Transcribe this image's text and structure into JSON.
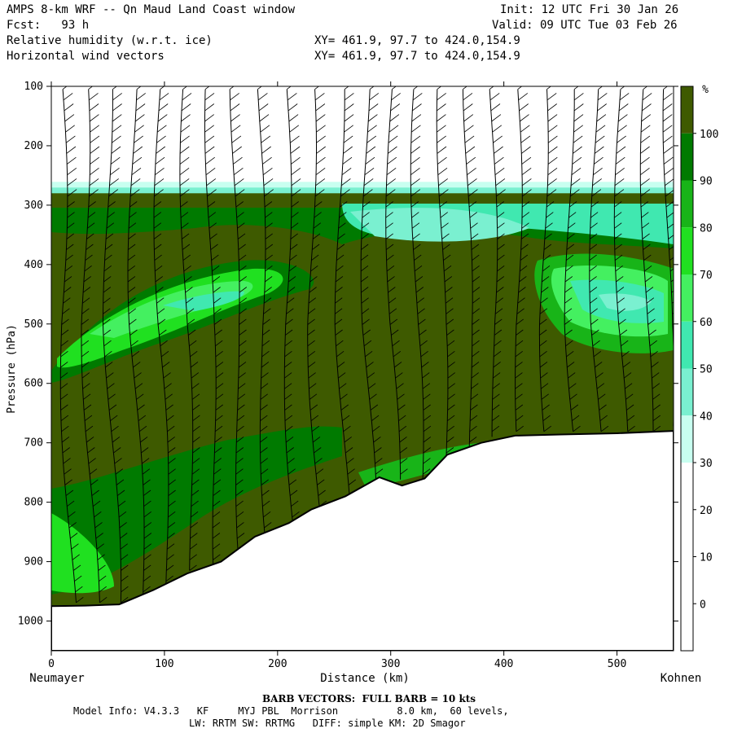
{
  "header": {
    "title": "AMPS 8-km WRF -- Qn Maud Land Coast window",
    "init": "Init: 12 UTC Fri 30 Jan 26",
    "fcst": "Fcst:   93 h",
    "valid": "Valid: 09 UTC Tue 03 Feb 26",
    "field1": "Relative humidity (w.r.t. ice)",
    "field1_xy": "XY= 461.9, 97.7 to 424.0,154.9",
    "field2": "Horizontal wind vectors",
    "field2_xy": "XY= 461.9, 97.7 to 424.0,154.9"
  },
  "footer": {
    "barb_note": "BARB VECTORS:  FULL BARB = 10 kts",
    "model_line1": "Model Info: V4.3.3   KF     MYJ PBL  Morrison          8.0 km,  60 levels,",
    "model_line2": "LW: RRTM SW: RRTMG   DIFF: simple KM: 2D Smagor"
  },
  "colors": {
    "c_lt30": "#ffffff",
    "c_30_40": "#c8fff0",
    "c_40_50": "#7af0d0",
    "c_50_60": "#40e8b0",
    "c_60_70": "#44f060",
    "c_70_80": "#20e020",
    "c_80_90": "#18b418",
    "c_90_100": "#007a00",
    "c_gt100": "#3e5a00"
  },
  "chart_data": {
    "type": "heatmap",
    "title": "",
    "xlabel": "Distance (km)",
    "ylabel": "Pressure (hPa)",
    "x_left_label": "Neumayer",
    "x_right_label": "Kohnen",
    "xlim": [
      0,
      550
    ],
    "ylim": [
      1050,
      100
    ],
    "x_ticks": [
      0,
      100,
      200,
      300,
      400,
      500
    ],
    "y_ticks": [
      100,
      200,
      300,
      400,
      500,
      600,
      700,
      800,
      900,
      1000
    ],
    "colorbar": {
      "unit": "%",
      "levels": [
        100,
        90,
        80,
        70,
        60,
        50,
        40,
        30,
        20,
        10,
        0
      ]
    },
    "terrain_surface_pressure": {
      "x": [
        0,
        30,
        60,
        90,
        120,
        150,
        180,
        210,
        230,
        260,
        290,
        310,
        330,
        350,
        380,
        410,
        450,
        500,
        550
      ],
      "p": [
        975,
        974,
        972,
        948,
        920,
        900,
        858,
        835,
        812,
        790,
        758,
        772,
        760,
        720,
        700,
        688,
        686,
        684,
        680
      ]
    },
    "moist_layer_top_pressure": 280,
    "wind_barb_columns_km": [
      10,
      30,
      50,
      72,
      95,
      118,
      140,
      162,
      185,
      208,
      230,
      255,
      278,
      300,
      322,
      345,
      368,
      390,
      412,
      435,
      458,
      480,
      502,
      525,
      545
    ]
  }
}
